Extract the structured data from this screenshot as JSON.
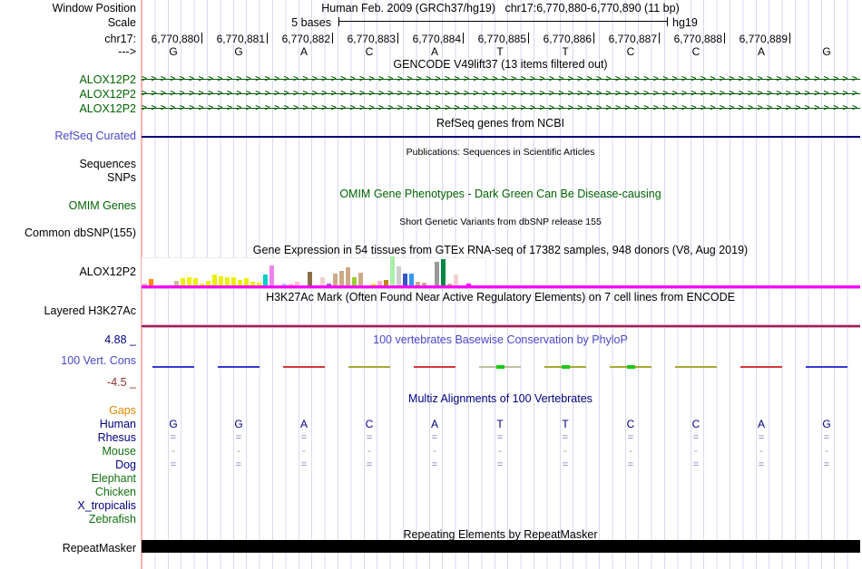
{
  "window": {
    "assembly_title": "Human Feb. 2009 (GRCh37/hg19)",
    "position": "chr17:6,770,880-6,770,890 (11 bp)",
    "labels": {
      "window_position": "Window Position",
      "scale": "Scale",
      "chrom": "chr17:",
      "direction": "--->"
    },
    "scale": {
      "value": "5 bases",
      "assembly": "hg19"
    },
    "coordinates": [
      "6,770,880",
      "6,770,881",
      "6,770,882",
      "6,770,883",
      "6,770,884",
      "6,770,885",
      "6,770,886",
      "6,770,887",
      "6,770,888",
      "6,770,889"
    ],
    "bases": [
      "G",
      "G",
      "A",
      "C",
      "A",
      "T",
      "T",
      "C",
      "C",
      "A",
      "G"
    ]
  },
  "tracks": {
    "gencode": {
      "title": "GENCODE V49lift37 (13 items filtered out)",
      "genes": [
        "ALOX12P2",
        "ALOX12P2",
        "ALOX12P2"
      ]
    },
    "refseq": {
      "title": "RefSeq genes from NCBI",
      "label": "RefSeq Curated"
    },
    "publications": {
      "title": "Publications: Sequences in Scientific Articles",
      "rows": [
        "Sequences",
        "SNPs"
      ]
    },
    "omim": {
      "title": "OMIM Gene Phenotypes - Dark Green Can Be Disease-causing",
      "label": "OMIM Genes"
    },
    "dbsnp": {
      "title": "Short Genetic Variants from dbSNP release 155",
      "label": "Common dbSNP(155)"
    },
    "gtex": {
      "title": "Gene Expression in 54 tissues from GTEx RNA-seq of 17382 samples, 948 donors (V8, Aug 2019)",
      "label": "ALOX12P2"
    },
    "h3k27ac": {
      "title": "H3K27Ac Mark (Often Found Near Active Regulatory Elements) on 7 cell lines from ENCODE",
      "label": "Layered H3K27Ac"
    },
    "phylop": {
      "title": "100 vertebrates Basewise Conservation by PhyloP",
      "label": "100 Vert. Cons",
      "max_value": "4.88 _",
      "min_value": "-4.5 _",
      "segments": [
        {
          "color": "#3737d2"
        },
        {
          "color": "#3737d2"
        },
        {
          "color": "#d23737"
        },
        {
          "color": "#a8a832"
        },
        {
          "color": "#d23737"
        },
        {
          "color": "#c0c0a0",
          "center": "#19c819"
        },
        {
          "color": "#a8a832",
          "center": "#19c819"
        },
        {
          "color": "#a8a832",
          "center": "#19c819"
        },
        {
          "color": "#a8a832"
        },
        {
          "color": "#d23737"
        },
        {
          "color": "#3737d2"
        }
      ]
    },
    "multiz": {
      "title": "Multiz Alignments of 100 Vertebrates",
      "species": [
        {
          "name": "Gaps",
          "label_color": "#e08800",
          "symbol": ""
        },
        {
          "name": "Human",
          "label_color": "#000080",
          "symbol": "bases"
        },
        {
          "name": "Rhesus",
          "label_color": "#000080",
          "symbol": "="
        },
        {
          "name": "Mouse",
          "label_color": "#107010",
          "symbol": "-"
        },
        {
          "name": "Dog",
          "label_color": "#000080",
          "symbol": "="
        },
        {
          "name": "Elephant",
          "label_color": "#107010",
          "symbol": ""
        },
        {
          "name": "Chicken",
          "label_color": "#107010",
          "symbol": ""
        },
        {
          "name": "X_tropicalis",
          "label_color": "#000080",
          "symbol": ""
        },
        {
          "name": "Zebrafish",
          "label_color": "#107010",
          "symbol": ""
        }
      ]
    },
    "repeatmasker": {
      "title": "Repeating Elements by RepeatMasker",
      "label": "RepeatMasker"
    }
  },
  "colors": {
    "grid_line": "#d9d9f0",
    "left_edge": "#ffb3b3",
    "gene_green": "#006400",
    "link_blue": "#4848c8",
    "gtex_baseline": "#ff00ff",
    "refseq_line": "#000080",
    "repeat_bar": "#000000"
  },
  "chart_data": {
    "type": "bar",
    "title": "GTEx gene expression for ALOX12P2 across 54 tissues (bar heights in px, colors = GTEx tissue colors)",
    "bars": [
      {
        "color": "#eeaaaa",
        "h": 2
      },
      {
        "color": "#ff8800",
        "h": 7
      },
      {
        "color": null,
        "h": 0
      },
      {
        "color": null,
        "h": 0
      },
      {
        "color": null,
        "h": 0
      },
      {
        "color": "#ccbb99",
        "h": 5
      },
      {
        "color": "#eeee00",
        "h": 8
      },
      {
        "color": "#eeee00",
        "h": 9
      },
      {
        "color": "#eeee00",
        "h": 8
      },
      {
        "color": "#eeee00",
        "h": 2
      },
      {
        "color": "#eeee00",
        "h": 5
      },
      {
        "color": "#eeee00",
        "h": 12
      },
      {
        "color": "#eeee00",
        "h": 10
      },
      {
        "color": "#eeee00",
        "h": 9
      },
      {
        "color": "#eeee00",
        "h": 9
      },
      {
        "color": "#eeee00",
        "h": 6
      },
      {
        "color": "#eeee00",
        "h": 8
      },
      {
        "color": "#eeee00",
        "h": 4
      },
      {
        "color": "#eeee00",
        "h": 3
      },
      {
        "color": "#00cccc",
        "h": 12
      },
      {
        "color": "#ee82ee",
        "h": 22
      },
      {
        "color": null,
        "h": 0
      },
      {
        "color": "#aaccee",
        "h": 2
      },
      {
        "color": "#ffc0cb",
        "h": 2
      },
      {
        "color": "#ffc0cb",
        "h": 4
      },
      {
        "color": null,
        "h": 0
      },
      {
        "color": "#8b6f47",
        "h": 15
      },
      {
        "color": null,
        "h": 0
      },
      {
        "color": "#f0d0d0",
        "h": 9
      },
      {
        "color": "#9955cc",
        "h": 2
      },
      {
        "color": "#ccaa88",
        "h": 13
      },
      {
        "color": "#ccaa88",
        "h": 16
      },
      {
        "color": "#ccaa88",
        "h": 20
      },
      {
        "color": "#99cc33",
        "h": 9
      },
      {
        "color": "#ccaa88",
        "h": 14
      },
      {
        "color": null,
        "h": 0
      },
      {
        "color": "#eeee00",
        "h": 2
      },
      {
        "color": "#ffb6c1",
        "h": 5
      },
      {
        "color": "#bb8800",
        "h": 6
      },
      {
        "color": "#aaeeaa",
        "h": 32
      },
      {
        "color": "#cccccc",
        "h": 21
      },
      {
        "color": "#3355cc",
        "h": 13
      },
      {
        "color": "#3399ee",
        "h": 13
      },
      {
        "color": "#ccaa88",
        "h": 4
      },
      {
        "color": "#ccaa88",
        "h": 3
      },
      {
        "color": null,
        "h": 0
      },
      {
        "color": "#999999",
        "h": 26
      },
      {
        "color": "#008844",
        "h": 29
      },
      {
        "color": "#ccaa88",
        "h": 2
      },
      {
        "color": "#f0d0d0",
        "h": 12
      },
      {
        "color": null,
        "h": 0
      },
      {
        "color": "#ff00ff",
        "h": 2
      },
      {
        "color": null,
        "h": 0
      },
      {
        "color": null,
        "h": 0
      }
    ]
  }
}
